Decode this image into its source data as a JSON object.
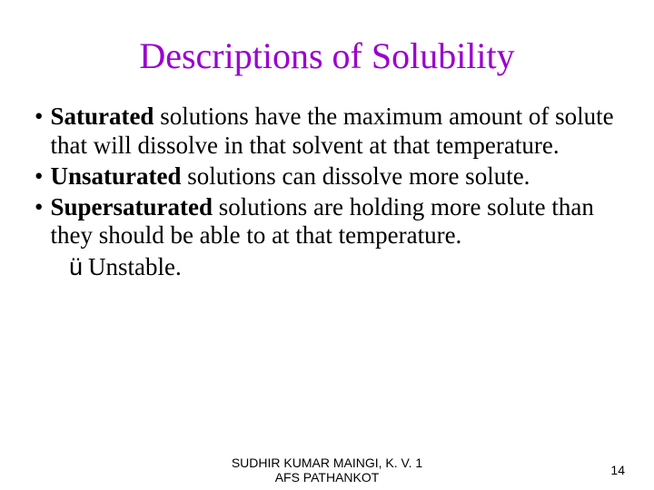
{
  "title": {
    "text": "Descriptions of Solubility",
    "color": "#9900cc"
  },
  "bullets": [
    {
      "bold": "Saturated",
      "rest": " solutions have the maximum amount of solute that will dissolve in that solvent at that temperature."
    },
    {
      "bold": "Unsaturated",
      "rest": " solutions can dissolve more solute."
    },
    {
      "bold": "Supersaturated",
      "rest": " solutions are holding more solute than they should be able to at that temperature."
    }
  ],
  "subitem": {
    "marker": "ü",
    "text": "Unstable."
  },
  "footer": {
    "line1": "SUDHIR KUMAR MAINGI, K. V. 1",
    "line2": "AFS PATHANKOT"
  },
  "pageNumber": "14",
  "colors": {
    "text": "#000000",
    "background": "#ffffff"
  }
}
